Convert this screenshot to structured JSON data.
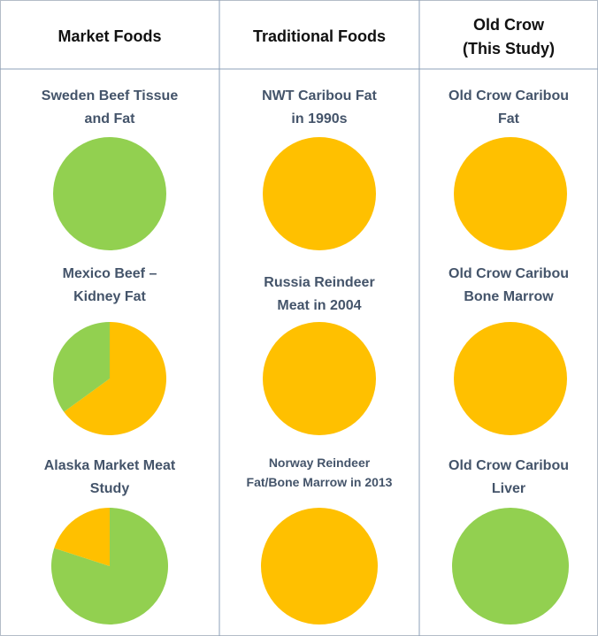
{
  "columns": [
    "Market Foods",
    "Traditional Foods",
    "Old Crow\n(This Study)"
  ],
  "chart_data": [
    {
      "type": "pie",
      "title": "Sweden Beef Tissue\nand Fat",
      "values": [
        100
      ],
      "colors": [
        "#92d050"
      ]
    },
    {
      "type": "pie",
      "title": "NWT Caribou Fat\nin 1990s",
      "values": [
        100
      ],
      "colors": [
        "#ffc000"
      ]
    },
    {
      "type": "pie",
      "title": "Old Crow Caribou\nFat",
      "values": [
        100
      ],
      "colors": [
        "#ffc000"
      ]
    },
    {
      "type": "pie",
      "title": "Mexico Beef –\nKidney Fat",
      "values": [
        65,
        35
      ],
      "colors": [
        "#ffc000",
        "#92d050"
      ]
    },
    {
      "type": "pie",
      "title": "Russia Reindeer\nMeat in 2004",
      "values": [
        100
      ],
      "colors": [
        "#ffc000"
      ]
    },
    {
      "type": "pie",
      "title": "Old Crow Caribou\nBone Marrow",
      "values": [
        100
      ],
      "colors": [
        "#ffc000"
      ]
    },
    {
      "type": "pie",
      "title": "Alaska Market Meat\nStudy",
      "values": [
        80,
        20
      ],
      "colors": [
        "#92d050",
        "#ffc000"
      ]
    },
    {
      "type": "pie",
      "title": "Norway Reindeer\nFat/Bone Marrow in 2013",
      "values": [
        100
      ],
      "colors": [
        "#ffc000"
      ]
    },
    {
      "type": "pie",
      "title": "Old Crow Caribou\nLiver",
      "values": [
        100
      ],
      "colors": [
        "#92d050"
      ]
    }
  ]
}
